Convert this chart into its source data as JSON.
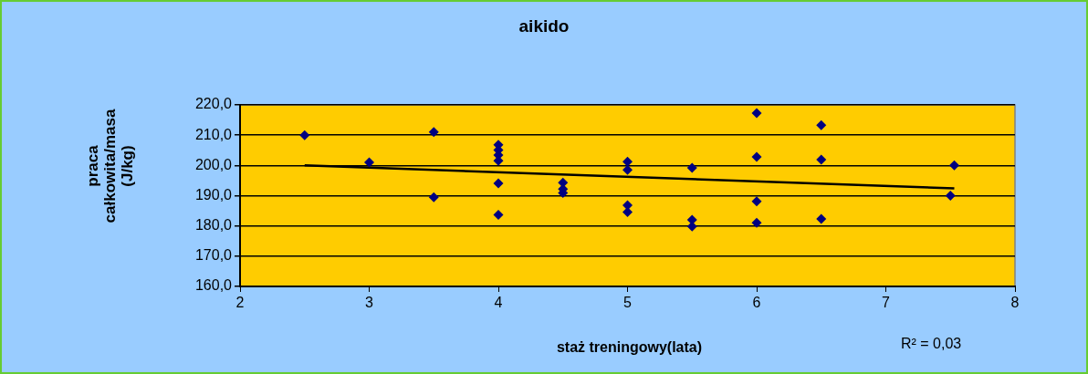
{
  "chart_data": {
    "type": "scatter",
    "title": "aikido",
    "xlabel": "staż treningowy(lata)",
    "ylabel": "praca całkowita/masa (J/kg)",
    "annotations": [
      "R² = 0,03"
    ],
    "xlim": [
      2,
      8
    ],
    "xticks": [
      2,
      3,
      4,
      5,
      6,
      7,
      8
    ],
    "ylim": [
      160,
      220
    ],
    "yticks": [
      {
        "value": 160,
        "label": "160,0"
      },
      {
        "value": 170,
        "label": "170,0"
      },
      {
        "value": 180,
        "label": "180,0"
      },
      {
        "value": 190,
        "label": "190,0"
      },
      {
        "value": 200,
        "label": "200,0"
      },
      {
        "value": 210,
        "label": "210,0"
      },
      {
        "value": 220,
        "label": "220,0"
      }
    ],
    "grid": "y",
    "legend": false,
    "marker": "diamond",
    "series": [
      {
        "color": "#000080",
        "x": [
          2.5,
          3,
          3.5,
          3.5,
          4,
          4,
          4,
          4,
          4,
          4,
          4.5,
          4.5,
          4.5,
          5,
          5,
          5,
          5,
          5.5,
          5.5,
          5.5,
          6,
          6,
          6,
          6,
          6.5,
          6.5,
          6.5,
          7.5,
          7.53
        ],
        "values": [
          210,
          201,
          211,
          189.5,
          206.8,
          205.1,
          203.4,
          201.5,
          194.1,
          183.7,
          194.3,
          192.2,
          190.9,
          201.2,
          198.5,
          186.8,
          184.6,
          199.2,
          182,
          179.8,
          217.3,
          202.8,
          188.1,
          181,
          213.3,
          201.9,
          182.3,
          190,
          200
        ]
      },
      {
        "type": "line",
        "color": "#000000",
        "marker": "none",
        "x": [
          2.5,
          7.53
        ],
        "values": [
          200,
          192.4
        ]
      }
    ]
  }
}
